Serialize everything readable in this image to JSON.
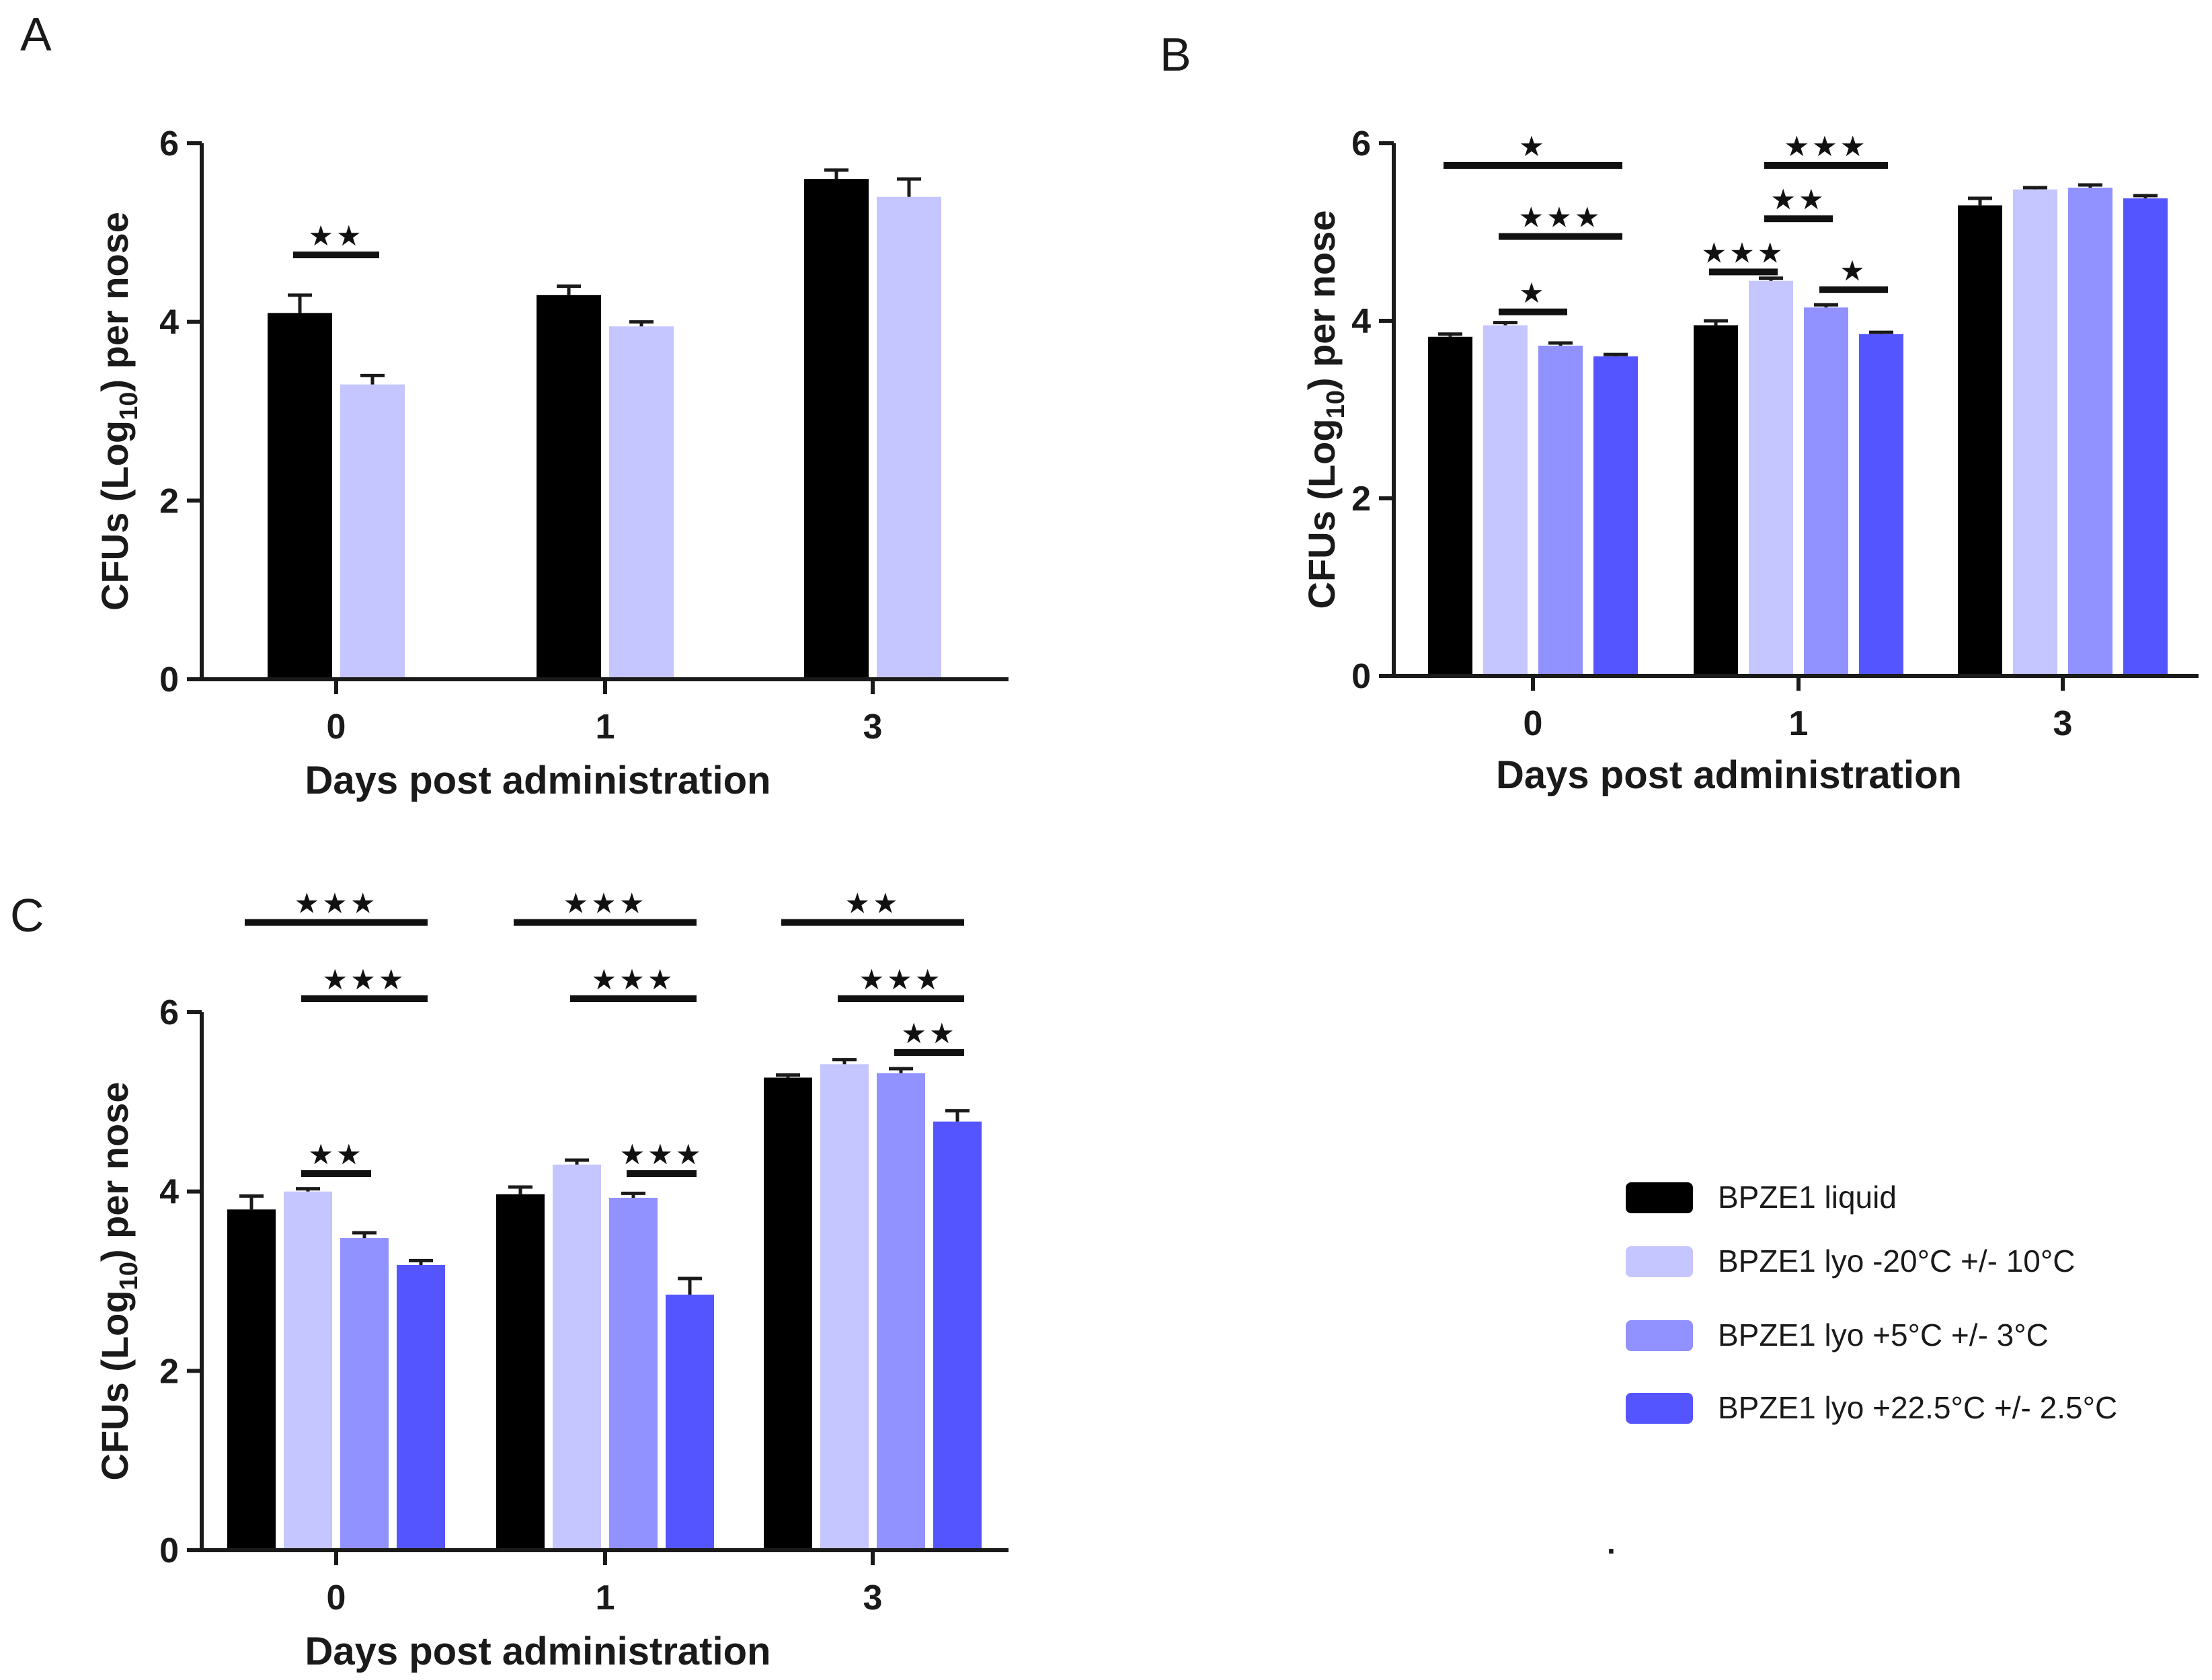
{
  "colors": {
    "axis": "#1a1a1a",
    "errorbar": "#1a1a1a",
    "sigbar": "#111111"
  },
  "chart_data": [
    {
      "panel": "A",
      "type": "bar",
      "xlabel": "Days post administration",
      "ylabel": "CFUs (Log10) per nose",
      "ylabel_parts": [
        "CFUs (Log",
        "10",
        ") per nose"
      ],
      "ylim": [
        0,
        6
      ],
      "yticks": [
        "0",
        "2",
        "4",
        "6"
      ],
      "categories": [
        "0",
        "1",
        "3"
      ],
      "series": [
        {
          "name": "BPZE1 liquid",
          "color": "#000000",
          "values": [
            4.1,
            4.3,
            5.6
          ],
          "errors": [
            0.2,
            0.1,
            0.1
          ]
        },
        {
          "name": "BPZE1 lyo -20°C +/- 10°C",
          "color": "#c5c5ff",
          "values": [
            3.3,
            3.95,
            5.4
          ],
          "errors": [
            0.1,
            0.05,
            0.2
          ]
        }
      ],
      "significance": [
        {
          "label": "★★",
          "category": 0,
          "from_series": 0,
          "to_series": 1,
          "level": 4.75
        }
      ]
    },
    {
      "panel": "B",
      "type": "bar",
      "xlabel": "Days post administration",
      "ylabel": "CFUs (Log10) per nose",
      "ylabel_parts": [
        "CFUs (Log",
        "10",
        ") per nose"
      ],
      "ylim": [
        0,
        6
      ],
      "yticks": [
        "0",
        "2",
        "4",
        "6"
      ],
      "categories": [
        "0",
        "1",
        "3"
      ],
      "series": [
        {
          "name": "BPZE1 liquid",
          "color": "#000000",
          "values": [
            3.82,
            3.95,
            5.3
          ],
          "errors": [
            0.03,
            0.05,
            0.08
          ]
        },
        {
          "name": "BPZE1 lyo -20°C +/- 10°C",
          "color": "#c5c5ff",
          "values": [
            3.95,
            4.45,
            5.48
          ],
          "errors": [
            0.03,
            0.03,
            0.02
          ]
        },
        {
          "name": "BPZE1 lyo +5°C +/- 3°C",
          "color": "#9191ff",
          "values": [
            3.72,
            4.15,
            5.5
          ],
          "errors": [
            0.03,
            0.03,
            0.03
          ]
        },
        {
          "name": "BPZE1 lyo +22.5°C +/- 2.5°C",
          "color": "#5555ff",
          "values": [
            3.6,
            3.85,
            5.38
          ],
          "errors": [
            0.02,
            0.02,
            0.03
          ]
        }
      ],
      "significance": [
        {
          "label": "★",
          "category": 0,
          "from_series": 0,
          "to_series": 3,
          "level": 5.75
        },
        {
          "label": "★★★",
          "category": 0,
          "from_series": 1,
          "to_series": 3,
          "level": 4.95
        },
        {
          "label": "★",
          "category": 0,
          "from_series": 1,
          "to_series": 2,
          "level": 4.1
        },
        {
          "label": "★★★",
          "category": 1,
          "from_series": 0,
          "to_series": 1,
          "level": 4.55
        },
        {
          "label": "★★★",
          "category": 1,
          "from_series": 1,
          "to_series": 3,
          "level": 5.75
        },
        {
          "label": "★★",
          "category": 1,
          "from_series": 1,
          "to_series": 2,
          "level": 5.15
        },
        {
          "label": "★",
          "category": 1,
          "from_series": 2,
          "to_series": 3,
          "level": 4.35
        }
      ]
    },
    {
      "panel": "C",
      "type": "bar",
      "xlabel": "Days post administration",
      "ylabel": "CFUs (Log10) per nose",
      "ylabel_parts": [
        "CFUs (Log",
        "10",
        ") per nose"
      ],
      "ylim": [
        0,
        6
      ],
      "yticks": [
        "0",
        "2",
        "4",
        "6"
      ],
      "categories": [
        "0",
        "1",
        "3"
      ],
      "series": [
        {
          "name": "BPZE1 liquid",
          "color": "#000000",
          "values": [
            3.8,
            3.97,
            5.27
          ],
          "errors": [
            0.15,
            0.08,
            0.03
          ]
        },
        {
          "name": "BPZE1 lyo -20°C +/- 10°C",
          "color": "#c5c5ff",
          "values": [
            4.0,
            4.3,
            5.42
          ],
          "errors": [
            0.03,
            0.05,
            0.05
          ]
        },
        {
          "name": "BPZE1 lyo +5°C +/- 3°C",
          "color": "#9191ff",
          "values": [
            3.48,
            3.93,
            5.32
          ],
          "errors": [
            0.06,
            0.05,
            0.05
          ]
        },
        {
          "name": "BPZE1 lyo +22.5°C +/- 2.5°C",
          "color": "#5555ff",
          "values": [
            3.18,
            2.85,
            4.78
          ],
          "errors": [
            0.05,
            0.18,
            0.12
          ]
        }
      ],
      "significance": [
        {
          "label": "★★★",
          "category": 0,
          "from_series": 0,
          "to_series": 3,
          "level": 7.0
        },
        {
          "label": "★★★",
          "category": 0,
          "from_series": 1,
          "to_series": 3,
          "level": 6.15
        },
        {
          "label": "★★",
          "category": 0,
          "from_series": 1,
          "to_series": 2,
          "level": 4.2
        },
        {
          "label": "★★★",
          "category": 1,
          "from_series": 0,
          "to_series": 3,
          "level": 7.0
        },
        {
          "label": "★★★",
          "category": 1,
          "from_series": 1,
          "to_series": 3,
          "level": 6.15
        },
        {
          "label": "★★★",
          "category": 1,
          "from_series": 2,
          "to_series": 3,
          "level": 4.2
        },
        {
          "label": "★★",
          "category": 2,
          "from_series": 0,
          "to_series": 3,
          "level": 7.0
        },
        {
          "label": "★★★",
          "category": 2,
          "from_series": 1,
          "to_series": 3,
          "level": 6.15
        },
        {
          "label": "★★",
          "category": 2,
          "from_series": 2,
          "to_series": 3,
          "level": 5.55
        }
      ]
    }
  ],
  "legend": {
    "items": [
      {
        "label": "BPZE1 liquid",
        "color": "#000000"
      },
      {
        "label": "BPZE1 lyo -20°C +/- 10°C",
        "color": "#c5c5ff"
      },
      {
        "label": "BPZE1 lyo +5°C +/- 3°C",
        "color": "#9191ff"
      },
      {
        "label": "BPZE1 lyo +22.5°C +/- 2.5°C",
        "color": "#5555ff"
      }
    ],
    "stray_mark": "."
  }
}
